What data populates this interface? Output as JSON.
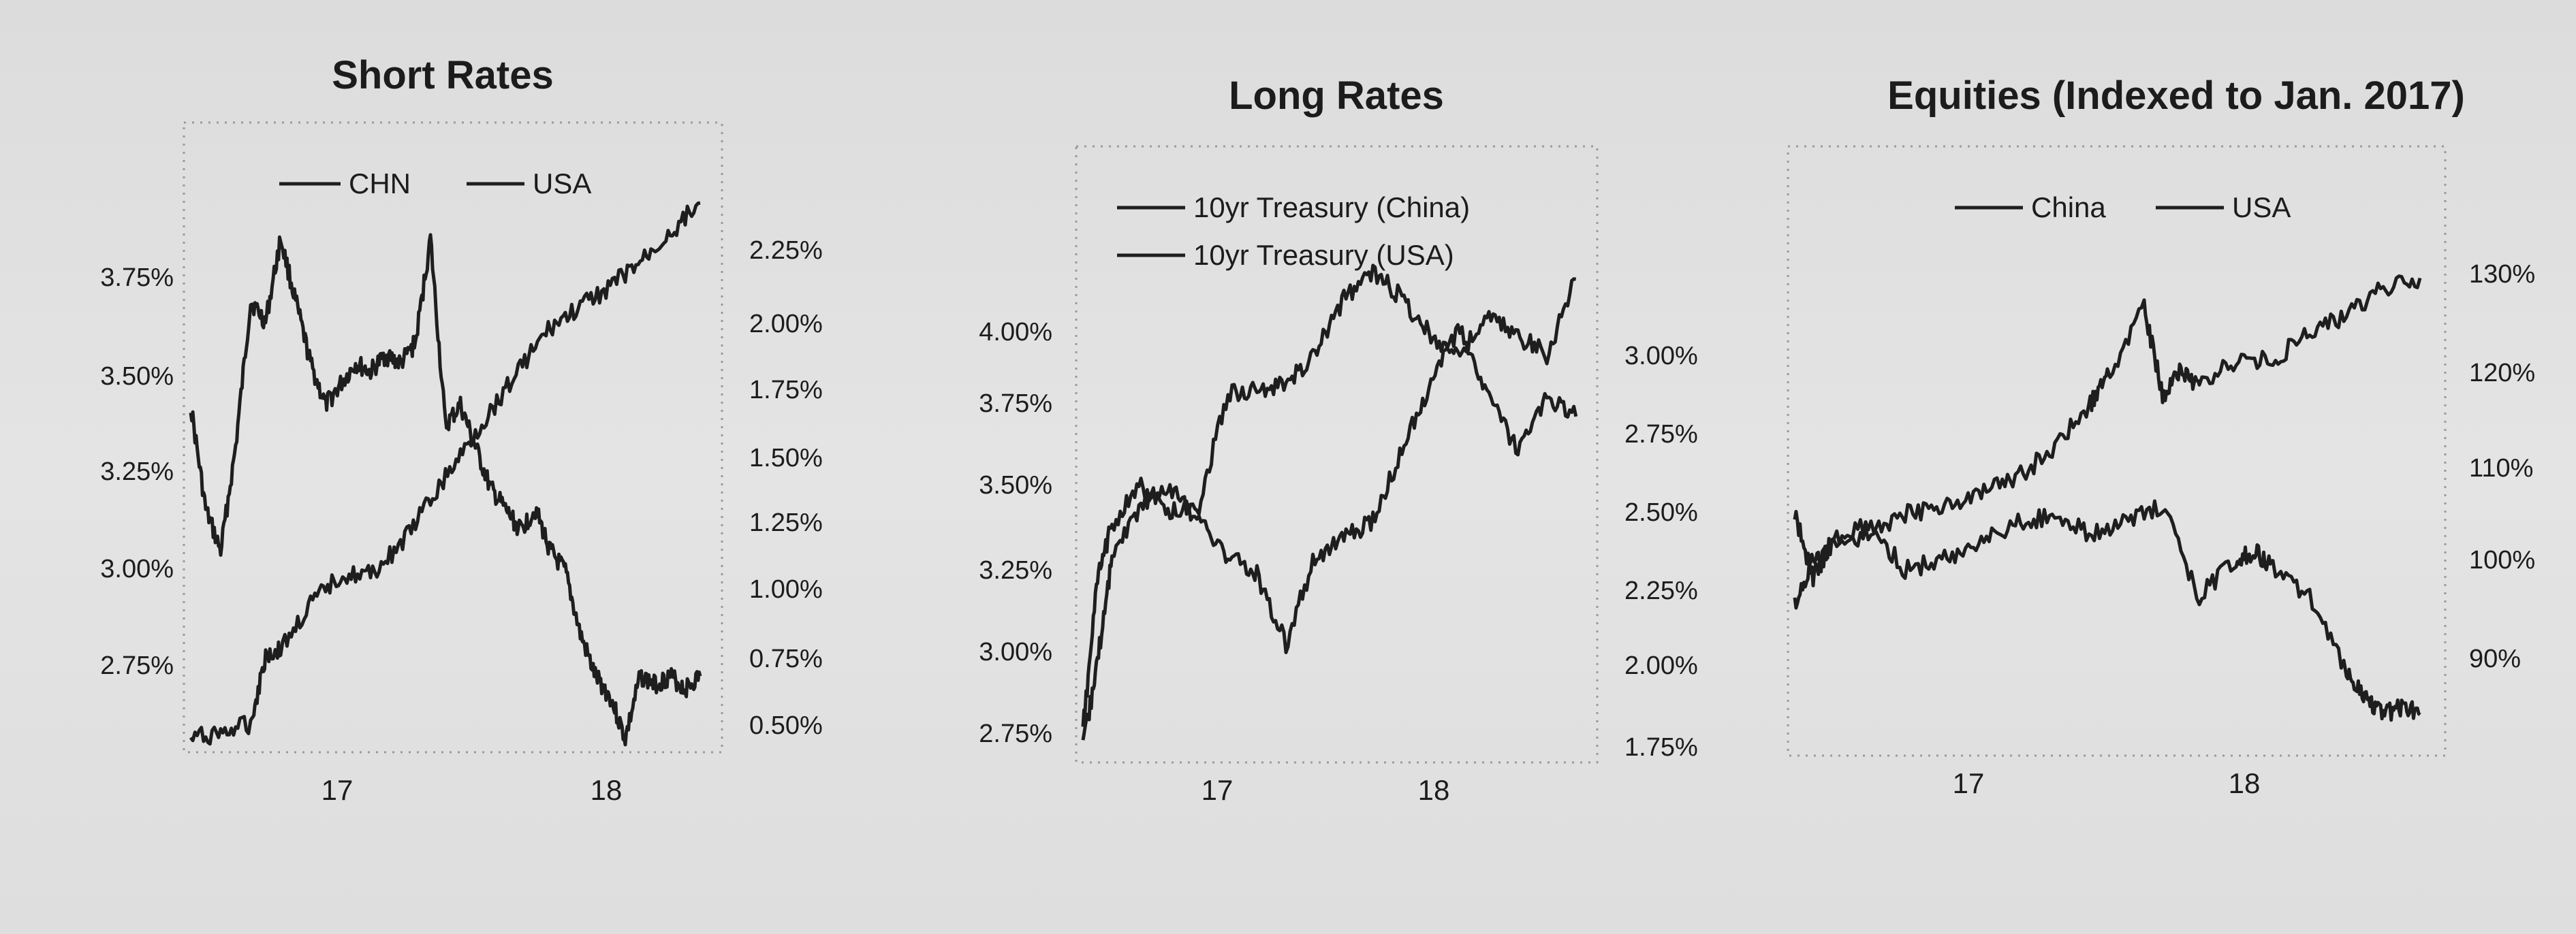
{
  "chart_data": [
    {
      "type": "line",
      "title": "Short Rates",
      "x_ticks": [
        "17",
        "18"
      ],
      "y_left_ticks": [
        "3.75%",
        "3.50%",
        "3.25%",
        "3.00%",
        "2.75%"
      ],
      "y_right_ticks": [
        "2.25%",
        "2.00%",
        "1.75%",
        "1.50%",
        "1.25%",
        "1.00%",
        "0.75%",
        "0.50%"
      ],
      "y_left_lim": [
        2.6,
        3.85
      ],
      "y_right_lim": [
        0.5,
        2.25
      ],
      "x_lim": [
        2016.5,
        2018.25
      ],
      "legend": "top-left",
      "series": [
        {
          "name": "CHN",
          "axis": "left",
          "x": [
            2016.5,
            2016.55,
            2016.6,
            2016.65,
            2016.7,
            2016.75,
            2016.8,
            2016.85,
            2016.9,
            2016.95,
            2017.0,
            2017.05,
            2017.1,
            2017.15,
            2017.2,
            2017.25,
            2017.3,
            2017.35,
            2017.4,
            2017.45,
            2017.5,
            2017.55,
            2017.6,
            2017.65,
            2017.7,
            2017.75,
            2017.8,
            2017.85,
            2017.9,
            2017.95,
            2018.0,
            2018.05,
            2018.1,
            2018.15,
            2018.2
          ],
          "values": [
            3.4,
            3.15,
            3.05,
            3.3,
            3.65,
            3.6,
            3.8,
            3.65,
            3.5,
            3.4,
            3.45,
            3.5,
            3.48,
            3.52,
            3.5,
            3.55,
            3.8,
            3.35,
            3.4,
            3.3,
            3.2,
            3.15,
            3.1,
            3.15,
            3.05,
            3.0,
            2.85,
            2.75,
            2.7,
            2.6,
            2.75,
            2.73,
            2.75,
            2.72,
            2.75
          ]
        },
        {
          "name": "USA",
          "axis": "right",
          "x": [
            2016.5,
            2016.6,
            2016.7,
            2016.75,
            2016.8,
            2016.9,
            2017.0,
            2017.1,
            2017.2,
            2017.3,
            2017.4,
            2017.5,
            2017.6,
            2017.7,
            2017.8,
            2017.9,
            2018.0,
            2018.1,
            2018.2
          ],
          "values": [
            0.5,
            0.52,
            0.55,
            0.78,
            0.8,
            0.95,
            1.05,
            1.05,
            1.15,
            1.3,
            1.45,
            1.6,
            1.75,
            1.88,
            1.95,
            2.02,
            2.1,
            2.2,
            2.3
          ]
        }
      ]
    },
    {
      "type": "line",
      "title": "Long Rates",
      "x_ticks": [
        "17",
        "18"
      ],
      "y_left_ticks": [
        "4.00%",
        "3.75%",
        "3.50%",
        "3.25%",
        "3.00%",
        "2.75%"
      ],
      "y_right_ticks": [
        "3.00%",
        "2.75%",
        "2.50%",
        "2.25%",
        "2.00%",
        "1.75%"
      ],
      "y_left_lim": [
        2.75,
        4.1
      ],
      "y_right_lim": [
        1.75,
        3.2
      ],
      "x_lim": [
        2016.5,
        2018.25
      ],
      "legend": "top-left",
      "series": [
        {
          "name": "10yr Treasury (China)",
          "axis": "left",
          "x": [
            2016.5,
            2016.55,
            2016.6,
            2016.7,
            2016.8,
            2016.9,
            2017.0,
            2017.1,
            2017.2,
            2017.3,
            2017.4,
            2017.5,
            2017.6,
            2017.7,
            2017.8,
            2017.9,
            2018.0,
            2018.1,
            2018.2
          ],
          "values": [
            2.8,
            3.2,
            3.35,
            3.45,
            3.38,
            3.4,
            3.7,
            3.7,
            3.72,
            3.8,
            3.95,
            4.02,
            3.95,
            3.85,
            3.8,
            3.9,
            3.85,
            3.8,
            4.0
          ]
        },
        {
          "name": "10yr Treasury (USA)",
          "axis": "right",
          "x": [
            2016.5,
            2016.55,
            2016.6,
            2016.7,
            2016.8,
            2016.9,
            2017.0,
            2017.1,
            2017.2,
            2017.3,
            2017.4,
            2017.5,
            2017.6,
            2017.7,
            2017.8,
            2017.9,
            2018.0,
            2018.1,
            2018.2
          ],
          "values": [
            1.75,
            2.0,
            2.3,
            2.45,
            2.5,
            2.4,
            2.3,
            2.25,
            2.05,
            2.3,
            2.35,
            2.4,
            2.6,
            2.8,
            2.95,
            2.75,
            2.6,
            2.75,
            2.7
          ]
        }
      ]
    },
    {
      "type": "line",
      "title": "Equities (Indexed to Jan. 2017)",
      "x_ticks": [
        "17",
        "18"
      ],
      "y_right_ticks": [
        "130%",
        "120%",
        "110%",
        "100%",
        "90%"
      ],
      "y_lim": [
        80,
        135
      ],
      "x_lim": [
        2016.5,
        2018.25
      ],
      "legend": "top-center",
      "series": [
        {
          "name": "China",
          "x": [
            2016.5,
            2016.55,
            2016.6,
            2016.7,
            2016.8,
            2016.9,
            2017.0,
            2017.1,
            2017.2,
            2017.3,
            2017.4,
            2017.5,
            2017.6,
            2017.7,
            2017.75,
            2017.8,
            2017.9,
            2018.0,
            2018.05,
            2018.1,
            2018.15,
            2018.2
          ],
          "values": [
            105,
            98,
            102,
            104,
            99,
            100,
            102,
            104,
            105,
            103,
            104,
            106,
            96,
            100,
            101,
            99,
            96,
            88,
            85,
            83,
            84,
            83
          ]
        },
        {
          "name": "USA",
          "x": [
            2016.5,
            2016.55,
            2016.6,
            2016.7,
            2016.8,
            2016.9,
            2017.0,
            2017.1,
            2017.2,
            2017.3,
            2017.35,
            2017.45,
            2017.5,
            2017.55,
            2017.6,
            2017.7,
            2017.8,
            2017.9,
            2018.0,
            2018.1,
            2018.2
          ],
          "values": [
            95,
            100,
            101,
            103,
            105,
            106,
            107,
            109,
            112,
            117,
            120,
            128,
            118,
            121,
            119,
            122,
            122,
            125,
            127,
            130,
            131
          ]
        }
      ]
    }
  ]
}
